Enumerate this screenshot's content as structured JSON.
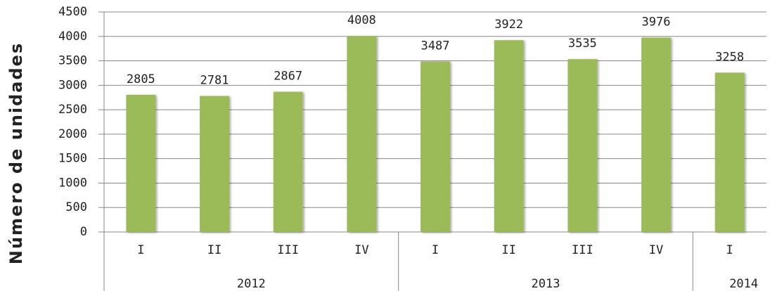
{
  "chart_data": {
    "type": "bar",
    "y_label": "Número de unidades",
    "categories": [
      "I",
      "II",
      "III",
      "IV",
      "I",
      "II",
      "III",
      "IV",
      "I"
    ],
    "groups": [
      {
        "name": "2012",
        "size": 4
      },
      {
        "name": "2013",
        "size": 4
      },
      {
        "name": "2014",
        "size": 1
      }
    ],
    "values": [
      2805,
      2781,
      2867,
      4008,
      3487,
      3922,
      3535,
      3976,
      3258
    ],
    "color": "#9bbb59",
    "ylim": [
      0,
      4500
    ],
    "yticks": [
      0,
      500,
      1000,
      1500,
      2000,
      2500,
      3000,
      3500,
      4000,
      4500
    ],
    "grid": true
  }
}
